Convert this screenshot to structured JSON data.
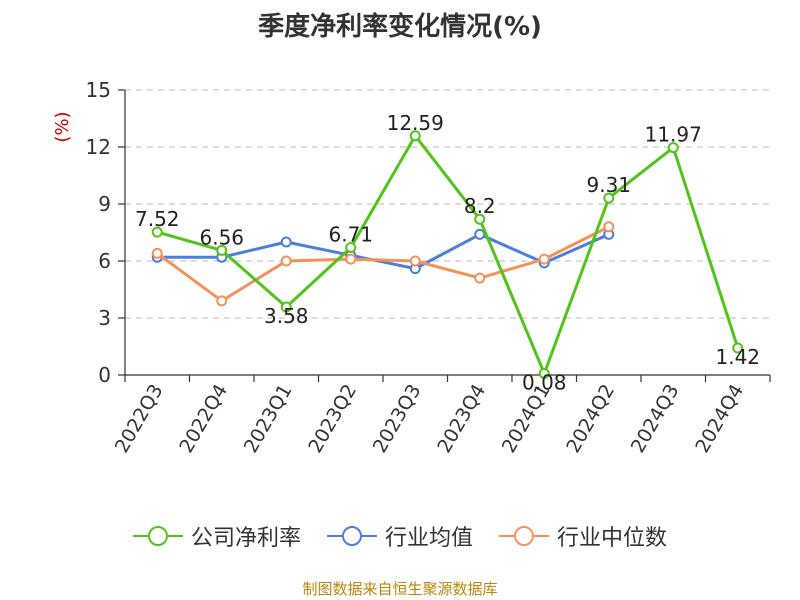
{
  "chart_data": {
    "type": "line",
    "title": "季度净利率变化情况(%)",
    "ylabel": "(%)",
    "ylim": [
      0,
      15
    ],
    "yticks": [
      "0",
      "3",
      "6",
      "9",
      "12",
      "15"
    ],
    "grid": true,
    "legend_position": "bottom",
    "categories": [
      "2022Q3",
      "2022Q4",
      "2023Q1",
      "2023Q2",
      "2023Q3",
      "2023Q4",
      "2024Q1",
      "2024Q2",
      "2024Q3",
      "2024Q4"
    ],
    "series": [
      {
        "name": "公司净利率",
        "color": "#52c41a",
        "values": [
          7.52,
          6.56,
          3.58,
          6.71,
          12.59,
          8.2,
          0.08,
          9.31,
          11.97,
          1.42
        ],
        "labels": [
          "7.52",
          "6.56",
          "3.58",
          "6.71",
          "12.59",
          "8.2",
          "0.08",
          "9.31",
          "11.97",
          "1.42"
        ]
      },
      {
        "name": "行业均值",
        "color": "#4a7fdb",
        "values": [
          6.2,
          6.2,
          7.0,
          6.3,
          5.6,
          7.4,
          5.9,
          7.4,
          null,
          null
        ]
      },
      {
        "name": "行业中位数",
        "color": "#f4925c",
        "values": [
          6.4,
          3.9,
          6.0,
          6.1,
          6.0,
          5.1,
          6.1,
          7.8,
          null,
          null
        ]
      }
    ]
  },
  "source": "制图数据来自恒生聚源数据库"
}
